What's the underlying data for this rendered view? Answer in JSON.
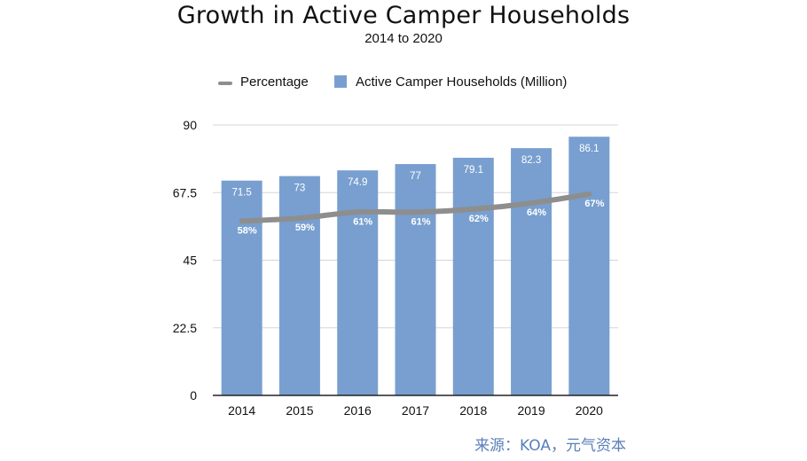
{
  "chart_data": {
    "type": "bar",
    "title": "Growth in Active Camper Households",
    "subtitle": "2014 to 2020",
    "categories": [
      "2014",
      "2015",
      "2016",
      "2017",
      "2018",
      "2019",
      "2020"
    ],
    "series": [
      {
        "name": "Active Camper Households (Million)",
        "type": "bar",
        "values": [
          71.5,
          73,
          74.9,
          77,
          79.1,
          82.3,
          86.1
        ],
        "labels": [
          "71.5",
          "73",
          "74.9",
          "77",
          "79.1",
          "82.3",
          "86.1"
        ],
        "color": "#789fcf"
      },
      {
        "name": "Percentage",
        "type": "line",
        "values": [
          58,
          59,
          61,
          61,
          62,
          64,
          67
        ],
        "labels": [
          "58%",
          "59%",
          "61%",
          "61%",
          "62%",
          "64%",
          "67%"
        ],
        "color": "#8e8e8e"
      }
    ],
    "ylim": [
      0,
      90
    ],
    "yticks": [
      0,
      22.5,
      45,
      67.5,
      90
    ],
    "ytick_labels": [
      "0",
      "22.5",
      "45",
      "67.5",
      "90"
    ],
    "grid": true,
    "legend": "top-left",
    "xlabel": "",
    "ylabel": ""
  },
  "legend": {
    "line_label": "Percentage",
    "bar_label": "Active Camper Households (Million)"
  },
  "source": "来源：KOA，元气资本"
}
